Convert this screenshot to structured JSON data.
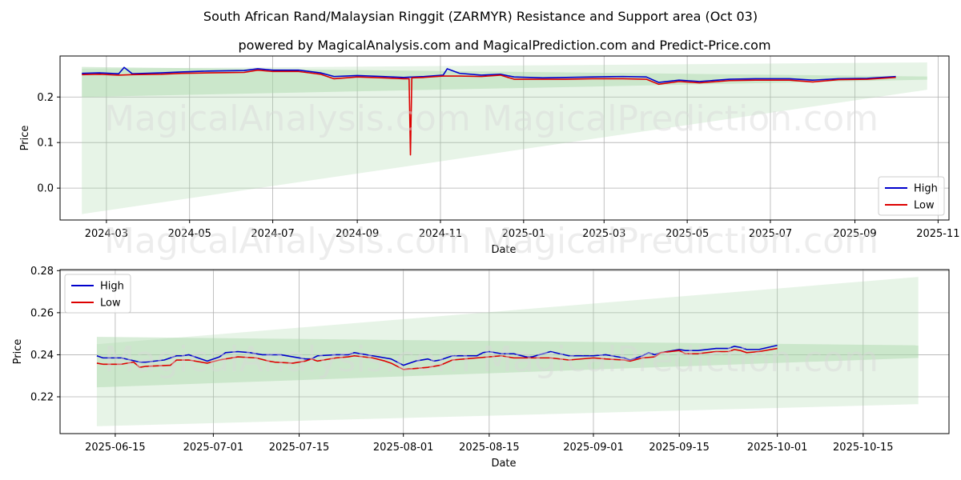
{
  "header": {
    "title": "South African Rand/Malaysian Ringgit (ZARMYR) Resistance and Support area (Oct 03)",
    "subtitle": "powered by MagicalAnalysis.com and MagicalPrediction.com and Predict-Price.com"
  },
  "watermarks": [
    "MagicalAnalysis.com",
    "MagicalPrediction.com"
  ],
  "colors": {
    "high": "#0000cc",
    "low": "#dd0000",
    "band": "#a8d8a8",
    "grid": "#b0b0b0"
  },
  "chart_data": [
    {
      "type": "line",
      "xlabel": "Date",
      "ylabel": "Price",
      "xlim": [
        "2024-01-27",
        "2025-11-09"
      ],
      "ylim": [
        -0.07,
        0.29
      ],
      "xticks": [
        "2024-03-01",
        "2024-05-01",
        "2024-07-01",
        "2024-09-01",
        "2024-11-01",
        "2025-01-01",
        "2025-03-01",
        "2025-05-01",
        "2025-07-01",
        "2025-09-01",
        "2025-11-01"
      ],
      "xtick_labels": [
        "2024-03",
        "2024-05",
        "2024-07",
        "2024-09",
        "2024-11",
        "2025-01",
        "2025-03",
        "2025-05",
        "2025-07",
        "2025-09",
        "2025-11"
      ],
      "yticks": [
        0.0,
        0.1,
        0.2
      ],
      "ytick_labels": [
        "0.0",
        "0.1",
        "0.2"
      ],
      "grid": true,
      "legend": "lower-right",
      "series": [
        {
          "name": "High",
          "x": [
            "2024-02-12",
            "2024-02-25",
            "2024-03-10",
            "2024-03-14",
            "2024-03-20",
            "2024-04-10",
            "2024-04-25",
            "2024-05-15",
            "2024-06-10",
            "2024-06-20",
            "2024-07-01",
            "2024-07-20",
            "2024-08-05",
            "2024-08-15",
            "2024-09-01",
            "2024-09-20",
            "2024-10-05",
            "2024-10-20",
            "2024-11-03",
            "2024-11-06",
            "2024-11-15",
            "2024-12-01",
            "2024-12-15",
            "2024-12-25",
            "2025-01-15",
            "2025-02-01",
            "2025-02-20",
            "2025-03-15",
            "2025-04-01",
            "2025-04-10",
            "2025-04-25",
            "2025-05-10",
            "2025-06-01",
            "2025-06-20",
            "2025-07-15",
            "2025-08-01",
            "2025-08-20",
            "2025-09-10",
            "2025-10-01"
          ],
          "values": [
            0.252,
            0.253,
            0.251,
            0.265,
            0.251,
            0.253,
            0.255,
            0.257,
            0.258,
            0.262,
            0.259,
            0.259,
            0.253,
            0.245,
            0.247,
            0.245,
            0.243,
            0.245,
            0.248,
            0.262,
            0.252,
            0.248,
            0.25,
            0.244,
            0.242,
            0.243,
            0.244,
            0.245,
            0.244,
            0.232,
            0.237,
            0.234,
            0.239,
            0.24,
            0.24,
            0.237,
            0.24,
            0.241,
            0.245
          ]
        },
        {
          "name": "Low",
          "x": [
            "2024-02-12",
            "2024-02-25",
            "2024-03-10",
            "2024-03-20",
            "2024-04-10",
            "2024-04-25",
            "2024-05-15",
            "2024-06-10",
            "2024-06-20",
            "2024-07-01",
            "2024-07-20",
            "2024-08-05",
            "2024-08-15",
            "2024-09-01",
            "2024-09-20",
            "2024-10-05",
            "2024-10-09",
            "2024-10-10",
            "2024-10-11",
            "2024-10-20",
            "2024-11-03",
            "2024-11-15",
            "2024-12-01",
            "2024-12-15",
            "2024-12-25",
            "2025-01-15",
            "2025-02-01",
            "2025-02-20",
            "2025-03-15",
            "2025-04-01",
            "2025-04-10",
            "2025-04-25",
            "2025-05-10",
            "2025-06-01",
            "2025-06-20",
            "2025-07-15",
            "2025-08-01",
            "2025-08-20",
            "2025-09-10",
            "2025-10-01"
          ],
          "values": [
            0.249,
            0.25,
            0.248,
            0.249,
            0.25,
            0.252,
            0.253,
            0.254,
            0.259,
            0.256,
            0.256,
            0.25,
            0.24,
            0.244,
            0.242,
            0.24,
            0.24,
            0.073,
            0.242,
            0.243,
            0.246,
            0.246,
            0.245,
            0.248,
            0.239,
            0.239,
            0.239,
            0.24,
            0.24,
            0.239,
            0.228,
            0.234,
            0.231,
            0.236,
            0.237,
            0.237,
            0.233,
            0.238,
            0.239,
            0.243
          ]
        }
      ],
      "bands": [
        {
          "x": [
            "2024-02-12",
            "2025-10-24"
          ],
          "upper": [
            0.266,
            0.245
          ],
          "lower": [
            0.2,
            0.238
          ],
          "opacity": 0.45
        },
        {
          "x": [
            "2024-02-12",
            "2025-10-24"
          ],
          "upper": [
            0.262,
            0.276
          ],
          "lower": [
            -0.057,
            0.216
          ],
          "opacity": 0.28
        }
      ]
    },
    {
      "type": "line",
      "xlabel": "Date",
      "ylabel": "Price",
      "xlim": [
        "2025-06-06",
        "2025-10-29"
      ],
      "ylim": [
        0.2025,
        0.2805
      ],
      "xticks": [
        "2025-06-15",
        "2025-07-01",
        "2025-07-15",
        "2025-08-01",
        "2025-08-15",
        "2025-09-01",
        "2025-09-15",
        "2025-10-01",
        "2025-10-15"
      ],
      "xtick_labels": [
        "2025-06-15",
        "2025-07-01",
        "2025-07-15",
        "2025-08-01",
        "2025-08-15",
        "2025-09-01",
        "2025-09-15",
        "2025-10-01",
        "2025-10-15"
      ],
      "yticks": [
        0.22,
        0.24,
        0.26,
        0.28
      ],
      "ytick_labels": [
        "0.22",
        "0.24",
        "0.26",
        "0.28"
      ],
      "grid": true,
      "legend": "upper-left",
      "series": [
        {
          "name": "High",
          "x": [
            "2025-06-12",
            "2025-06-13",
            "2025-06-16",
            "2025-06-19",
            "2025-06-20",
            "2025-06-23",
            "2025-06-25",
            "2025-06-26",
            "2025-06-27",
            "2025-06-30",
            "2025-07-02",
            "2025-07-03",
            "2025-07-05",
            "2025-07-07",
            "2025-07-08",
            "2025-07-09",
            "2025-07-12",
            "2025-07-14",
            "2025-07-16",
            "2025-07-17",
            "2025-07-18",
            "2025-07-21",
            "2025-07-23",
            "2025-07-24",
            "2025-07-27",
            "2025-07-28",
            "2025-07-29",
            "2025-07-30",
            "2025-08-01",
            "2025-08-03",
            "2025-08-05",
            "2025-08-06",
            "2025-08-07",
            "2025-08-09",
            "2025-08-11",
            "2025-08-13",
            "2025-08-14",
            "2025-08-15",
            "2025-08-17",
            "2025-08-19",
            "2025-08-21",
            "2025-08-22",
            "2025-08-25",
            "2025-08-28",
            "2025-09-01",
            "2025-09-03",
            "2025-09-06",
            "2025-09-07",
            "2025-09-09",
            "2025-09-10",
            "2025-09-11",
            "2025-09-12",
            "2025-09-15",
            "2025-09-16",
            "2025-09-18",
            "2025-09-21",
            "2025-09-23",
            "2025-09-24",
            "2025-09-25",
            "2025-09-26",
            "2025-09-28",
            "2025-10-01"
          ],
          "values": [
            0.2395,
            0.2385,
            0.2385,
            0.2365,
            0.2365,
            0.2375,
            0.2395,
            0.2395,
            0.24,
            0.237,
            0.239,
            0.241,
            0.2415,
            0.241,
            0.2405,
            0.24,
            0.24,
            0.239,
            0.238,
            0.238,
            0.2395,
            0.24,
            0.24,
            0.241,
            0.2395,
            0.239,
            0.2385,
            0.238,
            0.235,
            0.237,
            0.238,
            0.237,
            0.2375,
            0.2395,
            0.2395,
            0.2395,
            0.241,
            0.2415,
            0.2405,
            0.2405,
            0.239,
            0.239,
            0.2415,
            0.2395,
            0.2395,
            0.24,
            0.2385,
            0.2375,
            0.2395,
            0.241,
            0.24,
            0.241,
            0.2425,
            0.242,
            0.242,
            0.243,
            0.243,
            0.244,
            0.2435,
            0.2425,
            0.2425,
            0.2445
          ]
        },
        {
          "name": "Low",
          "x": [
            "2025-06-12",
            "2025-06-13",
            "2025-06-16",
            "2025-06-18",
            "2025-06-19",
            "2025-06-20",
            "2025-06-24",
            "2025-06-25",
            "2025-06-27",
            "2025-06-30",
            "2025-07-02",
            "2025-07-04",
            "2025-07-05",
            "2025-07-08",
            "2025-07-10",
            "2025-07-11",
            "2025-07-14",
            "2025-07-16",
            "2025-07-17",
            "2025-07-18",
            "2025-07-21",
            "2025-07-23",
            "2025-07-24",
            "2025-07-27",
            "2025-07-29",
            "2025-07-30",
            "2025-08-01",
            "2025-08-03",
            "2025-08-05",
            "2025-08-07",
            "2025-08-09",
            "2025-08-11",
            "2025-08-13",
            "2025-08-15",
            "2025-08-17",
            "2025-08-19",
            "2025-08-21",
            "2025-08-25",
            "2025-08-28",
            "2025-09-01",
            "2025-09-03",
            "2025-09-06",
            "2025-09-07",
            "2025-09-09",
            "2025-09-11",
            "2025-09-12",
            "2025-09-15",
            "2025-09-16",
            "2025-09-18",
            "2025-09-21",
            "2025-09-23",
            "2025-09-24",
            "2025-09-25",
            "2025-09-26",
            "2025-09-28",
            "2025-10-01"
          ],
          "values": [
            0.236,
            0.2355,
            0.2355,
            0.2365,
            0.234,
            0.2345,
            0.235,
            0.2375,
            0.2375,
            0.236,
            0.2375,
            0.2385,
            0.239,
            0.2385,
            0.237,
            0.2365,
            0.236,
            0.237,
            0.238,
            0.237,
            0.2385,
            0.239,
            0.2395,
            0.2385,
            0.237,
            0.236,
            0.233,
            0.2335,
            0.234,
            0.235,
            0.2375,
            0.238,
            0.2385,
            0.239,
            0.2395,
            0.2385,
            0.2385,
            0.2385,
            0.2375,
            0.2385,
            0.238,
            0.2375,
            0.237,
            0.2385,
            0.239,
            0.241,
            0.242,
            0.2405,
            0.2405,
            0.2415,
            0.2415,
            0.2425,
            0.242,
            0.241,
            0.2415,
            0.243
          ]
        }
      ],
      "bands": [
        {
          "x": [
            "2025-06-12",
            "2025-10-24"
          ],
          "upper": [
            0.2485,
            0.2445
          ],
          "lower": [
            0.2245,
            0.2385
          ],
          "opacity": 0.45
        },
        {
          "x": [
            "2025-06-12",
            "2025-10-24"
          ],
          "upper": [
            0.245,
            0.277
          ],
          "lower": [
            0.206,
            0.2165
          ],
          "opacity": 0.28
        }
      ]
    }
  ]
}
